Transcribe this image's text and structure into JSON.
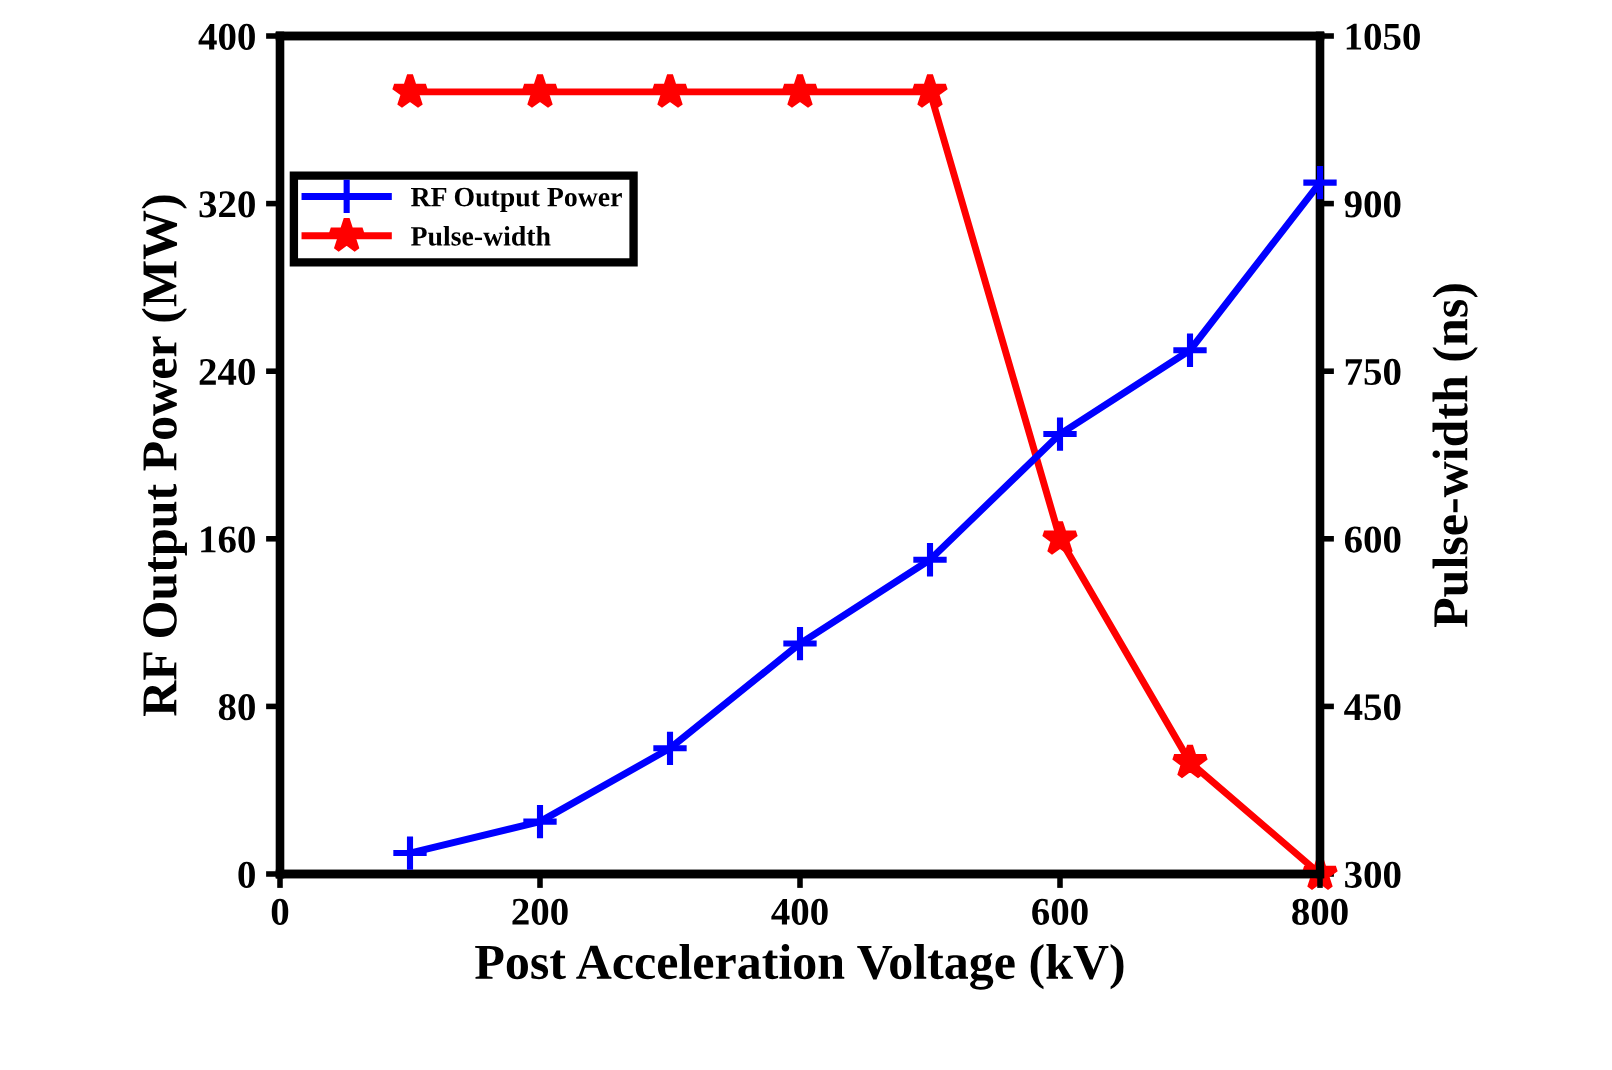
{
  "chart_data": {
    "type": "line",
    "xlabel": "Post Acceleration Voltage (kV)",
    "ylabel": "RF Output Power (MW)",
    "y2label": "Pulse-width (ns)",
    "x": [
      100,
      200,
      300,
      400,
      500,
      600,
      700,
      800
    ],
    "series": [
      {
        "name": "RF Output Power",
        "color": "#0000ff",
        "values": [
          10,
          25,
          60,
          110,
          150,
          210,
          250,
          330
        ],
        "marker": "cross"
      },
      {
        "name": "Pulse-width",
        "color": "#ff0000",
        "values": [
          1000,
          1000,
          1000,
          1000,
          1000,
          600,
          400,
          300
        ],
        "marker": "star",
        "axis": "y2"
      }
    ],
    "xlim": [
      0,
      800
    ],
    "xticks": [
      0,
      200,
      400,
      600,
      800
    ],
    "ylim": [
      0,
      400
    ],
    "yticks": [
      0,
      80,
      160,
      240,
      320,
      400
    ],
    "y2lim": [
      300,
      1050
    ],
    "y2ticks": [
      300,
      450,
      600,
      750,
      900,
      1050
    ],
    "legend": "top left",
    "grid": false,
    "line_style": "solid"
  }
}
